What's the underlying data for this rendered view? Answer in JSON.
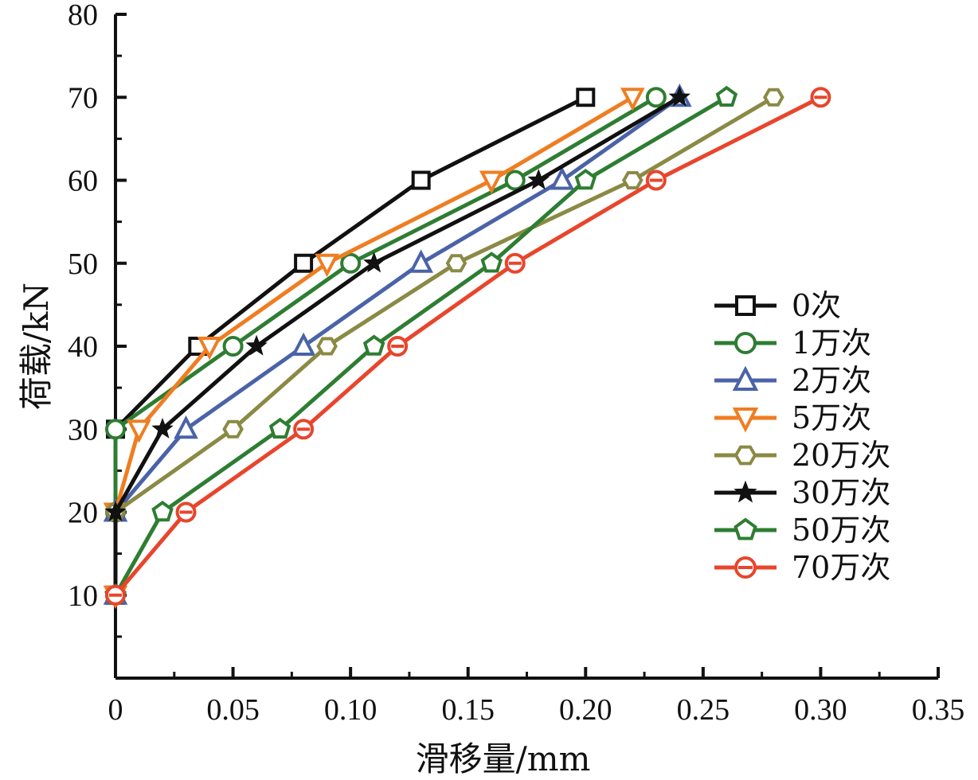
{
  "chart_data": {
    "type": "line",
    "title": "",
    "xlabel": "滑移量/mm",
    "ylabel": "荷载/kN",
    "xlim": [
      0,
      0.35
    ],
    "ylim": [
      0,
      80
    ],
    "xticks": [
      0,
      0.05,
      0.1,
      0.15,
      0.2,
      0.25,
      0.3,
      0.35
    ],
    "xtick_labels": [
      "0",
      "0.05",
      "0.10",
      "0.15",
      "0.20",
      "0.25",
      "0.30",
      "0.35"
    ],
    "yticks": [
      10,
      20,
      30,
      40,
      50,
      60,
      70,
      80
    ],
    "ytick_labels": [
      "10",
      "20",
      "30",
      "40",
      "50",
      "60",
      "70",
      "80"
    ],
    "grid": false,
    "legend_position": "right",
    "series": [
      {
        "name": "0次",
        "color": "#111111",
        "marker": "square",
        "x": [
          0,
          0,
          0,
          0.035,
          0.08,
          0.13,
          0.2
        ],
        "y": [
          10,
          20,
          30,
          40,
          50,
          60,
          70
        ]
      },
      {
        "name": "1万次",
        "color": "#2e7d32",
        "marker": "circle",
        "x": [
          0,
          0,
          0,
          0.05,
          0.1,
          0.17,
          0.23
        ],
        "y": [
          10,
          20,
          30,
          40,
          50,
          60,
          70
        ]
      },
      {
        "name": "2万次",
        "color": "#4a63a8",
        "marker": "triangle",
        "x": [
          0,
          0,
          0.03,
          0.08,
          0.13,
          0.19,
          0.24
        ],
        "y": [
          10,
          20,
          30,
          40,
          50,
          60,
          70
        ]
      },
      {
        "name": "5万次",
        "color": "#ef7d22",
        "marker": "tri-down",
        "x": [
          0,
          0,
          0.01,
          0.04,
          0.09,
          0.16,
          0.22
        ],
        "y": [
          10,
          20,
          30,
          40,
          50,
          60,
          70
        ]
      },
      {
        "name": "20万次",
        "color": "#8a8a45",
        "marker": "hexagon",
        "x": [
          0,
          0,
          0.05,
          0.09,
          0.145,
          0.22,
          0.28
        ],
        "y": [
          10,
          20,
          30,
          40,
          50,
          60,
          70
        ]
      },
      {
        "name": "30万次",
        "color": "#111111",
        "marker": "star",
        "x": [
          0,
          0,
          0.02,
          0.06,
          0.11,
          0.18,
          0.24
        ],
        "y": [
          10,
          20,
          30,
          40,
          50,
          60,
          70
        ]
      },
      {
        "name": "50万次",
        "color": "#2e7d32",
        "marker": "pentagon",
        "x": [
          0,
          0.02,
          0.07,
          0.11,
          0.16,
          0.2,
          0.26
        ],
        "y": [
          10,
          20,
          30,
          40,
          50,
          60,
          70
        ]
      },
      {
        "name": "70万次",
        "color": "#e8452c",
        "marker": "theta",
        "x": [
          0,
          0.03,
          0.08,
          0.12,
          0.17,
          0.23,
          0.3
        ],
        "y": [
          10,
          20,
          30,
          40,
          50,
          60,
          70
        ]
      }
    ]
  }
}
